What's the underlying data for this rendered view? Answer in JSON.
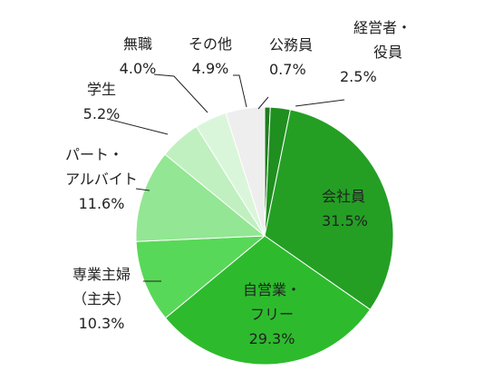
{
  "chart_data": {
    "type": "pie",
    "title": "",
    "slices": [
      {
        "label_lines": [
          "公務員"
        ],
        "value_text": "0.7%",
        "value": 0.7,
        "color": "#1e7d1e"
      },
      {
        "label_lines": [
          "経営者・",
          "役員"
        ],
        "value_text": "2.5%",
        "value": 2.5,
        "color": "#1f8f1f"
      },
      {
        "label_lines": [
          "会社員"
        ],
        "value_text": "31.5%",
        "value": 31.5,
        "color": "#249f24"
      },
      {
        "label_lines": [
          "自営業・",
          "フリー"
        ],
        "value_text": "29.3%",
        "value": 29.3,
        "color": "#2dbb2d"
      },
      {
        "label_lines": [
          "専業主婦",
          "（主夫）"
        ],
        "value_text": "10.3%",
        "value": 10.3,
        "color": "#58d858"
      },
      {
        "label_lines": [
          "パート・",
          "アルバイト"
        ],
        "value_text": "11.6%",
        "value": 11.6,
        "color": "#93e693"
      },
      {
        "label_lines": [
          "学生"
        ],
        "value_text": "5.2%",
        "value": 5.2,
        "color": "#c0f0c0"
      },
      {
        "label_lines": [
          "無職"
        ],
        "value_text": "4.0%",
        "value": 4.0,
        "color": "#daf6da"
      },
      {
        "label_lines": [
          "その他"
        ],
        "value_text": "4.9%",
        "value": 4.9,
        "color": "#eeeeee"
      }
    ]
  }
}
